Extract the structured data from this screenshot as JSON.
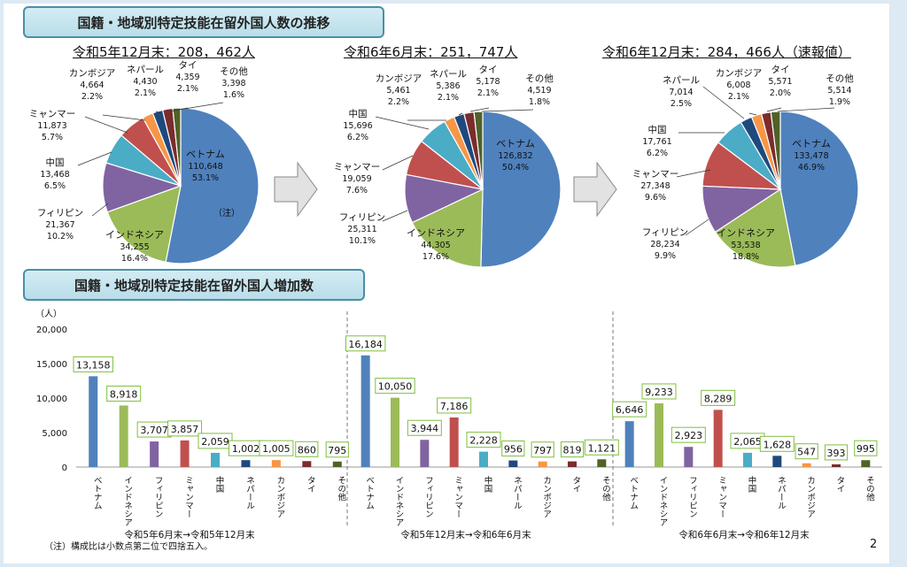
{
  "titles": {
    "top": "国籍・地域別特定技能在留外国人数の推移",
    "bottom": "国籍・地域別特定技能在留外国人増加数"
  },
  "note": "（注）構成比は小数点第二位で四捨五入。",
  "page_number": "2",
  "colors": {
    "ベトナム": "#4f81bd",
    "インドネシア": "#9bbb59",
    "フィリピン": "#8064a2",
    "ミャンマー": "#c0504d",
    "中国": "#4bacc6",
    "ネパール": "#1f497d",
    "カンボジア": "#f79646",
    "タイ": "#7b2c2c",
    "その他": "#4f6228"
  },
  "chart_data": [
    {
      "type": "pie",
      "title": "令和5年12月末：208，462人",
      "slices": [
        {
          "label": "ベトナム",
          "value": "110,648",
          "pct": "53.1%",
          "v": 110648
        },
        {
          "label": "インドネシア",
          "value": "34,255",
          "pct": "16.4%",
          "v": 34255
        },
        {
          "label": "フィリピン",
          "value": "21,367",
          "pct": "10.2%",
          "v": 21367
        },
        {
          "label": "中国",
          "value": "13,468",
          "pct": "6.5%",
          "v": 13468
        },
        {
          "label": "ミャンマー",
          "value": "11,873",
          "pct": "5.7%",
          "v": 11873
        },
        {
          "label": "カンボジア",
          "value": "4,664",
          "pct": "2.2%",
          "v": 4664
        },
        {
          "label": "ネパール",
          "value": "4,430",
          "pct": "2.1%",
          "v": 4430
        },
        {
          "label": "タイ",
          "value": "4,359",
          "pct": "2.1%",
          "v": 4359
        },
        {
          "label": "その他",
          "value": "3,398",
          "pct": "1.6%",
          "v": 3398
        }
      ],
      "annotation": "（注）"
    },
    {
      "type": "pie",
      "title": "令和6年6月末：251，747人",
      "slices": [
        {
          "label": "ベトナム",
          "value": "126,832",
          "pct": "50.4%",
          "v": 126832
        },
        {
          "label": "インドネシア",
          "value": "44,305",
          "pct": "17.6%",
          "v": 44305
        },
        {
          "label": "フィリピン",
          "value": "25,311",
          "pct": "10.1%",
          "v": 25311
        },
        {
          "label": "ミャンマー",
          "value": "19,059",
          "pct": "7.6%",
          "v": 19059
        },
        {
          "label": "中国",
          "value": "15,696",
          "pct": "6.2%",
          "v": 15696
        },
        {
          "label": "カンボジア",
          "value": "5,461",
          "pct": "2.2%",
          "v": 5461
        },
        {
          "label": "ネパール",
          "value": "5,386",
          "pct": "2.1%",
          "v": 5386
        },
        {
          "label": "タイ",
          "value": "5,178",
          "pct": "2.1%",
          "v": 5178
        },
        {
          "label": "その他",
          "value": "4,519",
          "pct": "1.8%",
          "v": 4519
        }
      ]
    },
    {
      "type": "pie",
      "title": "令和6年12月末：284，466人（速報値）",
      "slices": [
        {
          "label": "ベトナム",
          "value": "133,478",
          "pct": "46.9%",
          "v": 133478
        },
        {
          "label": "インドネシア",
          "value": "53,538",
          "pct": "18.8%",
          "v": 53538
        },
        {
          "label": "フィリピン",
          "value": "28,234",
          "pct": "9.9%",
          "v": 28234
        },
        {
          "label": "ミャンマー",
          "value": "27,348",
          "pct": "9.6%",
          "v": 27348
        },
        {
          "label": "中国",
          "value": "17,761",
          "pct": "6.2%",
          "v": 17761
        },
        {
          "label": "ネパール",
          "value": "7,014",
          "pct": "2.5%",
          "v": 7014
        },
        {
          "label": "カンボジア",
          "value": "6,008",
          "pct": "2.1%",
          "v": 6008
        },
        {
          "label": "タイ",
          "value": "5,571",
          "pct": "2.0%",
          "v": 5571
        },
        {
          "label": "その他",
          "value": "5,514",
          "pct": "1.9%",
          "v": 5514
        }
      ]
    },
    {
      "type": "bar",
      "ylabel": "（人）",
      "ylim": [
        0,
        20000
      ],
      "yticks": [
        "0",
        "5,000",
        "10,000",
        "15,000",
        "20,000"
      ],
      "categories": [
        "ベトナム",
        "インドネシア",
        "フィリピン",
        "ミャンマー",
        "中国",
        "ネパール",
        "カンボジア",
        "タイ",
        "その他"
      ],
      "groups": [
        {
          "name": "令和5年6月末→令和5年12月末",
          "values": [
            13158,
            8918,
            3707,
            3857,
            2059,
            1002,
            1005,
            860,
            795
          ],
          "labels": [
            "13,158",
            "8,918",
            "3,707",
            "3,857",
            "2,059",
            "1,002",
            "1,005",
            "860",
            "795"
          ]
        },
        {
          "name": "令和5年12月末→令和6年6月末",
          "values": [
            16184,
            10050,
            3944,
            7186,
            2228,
            956,
            797,
            819,
            1121
          ],
          "labels": [
            "16,184",
            "10,050",
            "3,944",
            "7,186",
            "2,228",
            "956",
            "797",
            "819",
            "1,121"
          ]
        },
        {
          "name": "令和6年6月末→令和6年12月末",
          "values": [
            6646,
            9233,
            2923,
            8289,
            2065,
            1628,
            547,
            393,
            995
          ],
          "labels": [
            "6,646",
            "9,233",
            "2,923",
            "8,289",
            "2,065",
            "1,628",
            "547",
            "393",
            "995"
          ]
        }
      ]
    }
  ]
}
